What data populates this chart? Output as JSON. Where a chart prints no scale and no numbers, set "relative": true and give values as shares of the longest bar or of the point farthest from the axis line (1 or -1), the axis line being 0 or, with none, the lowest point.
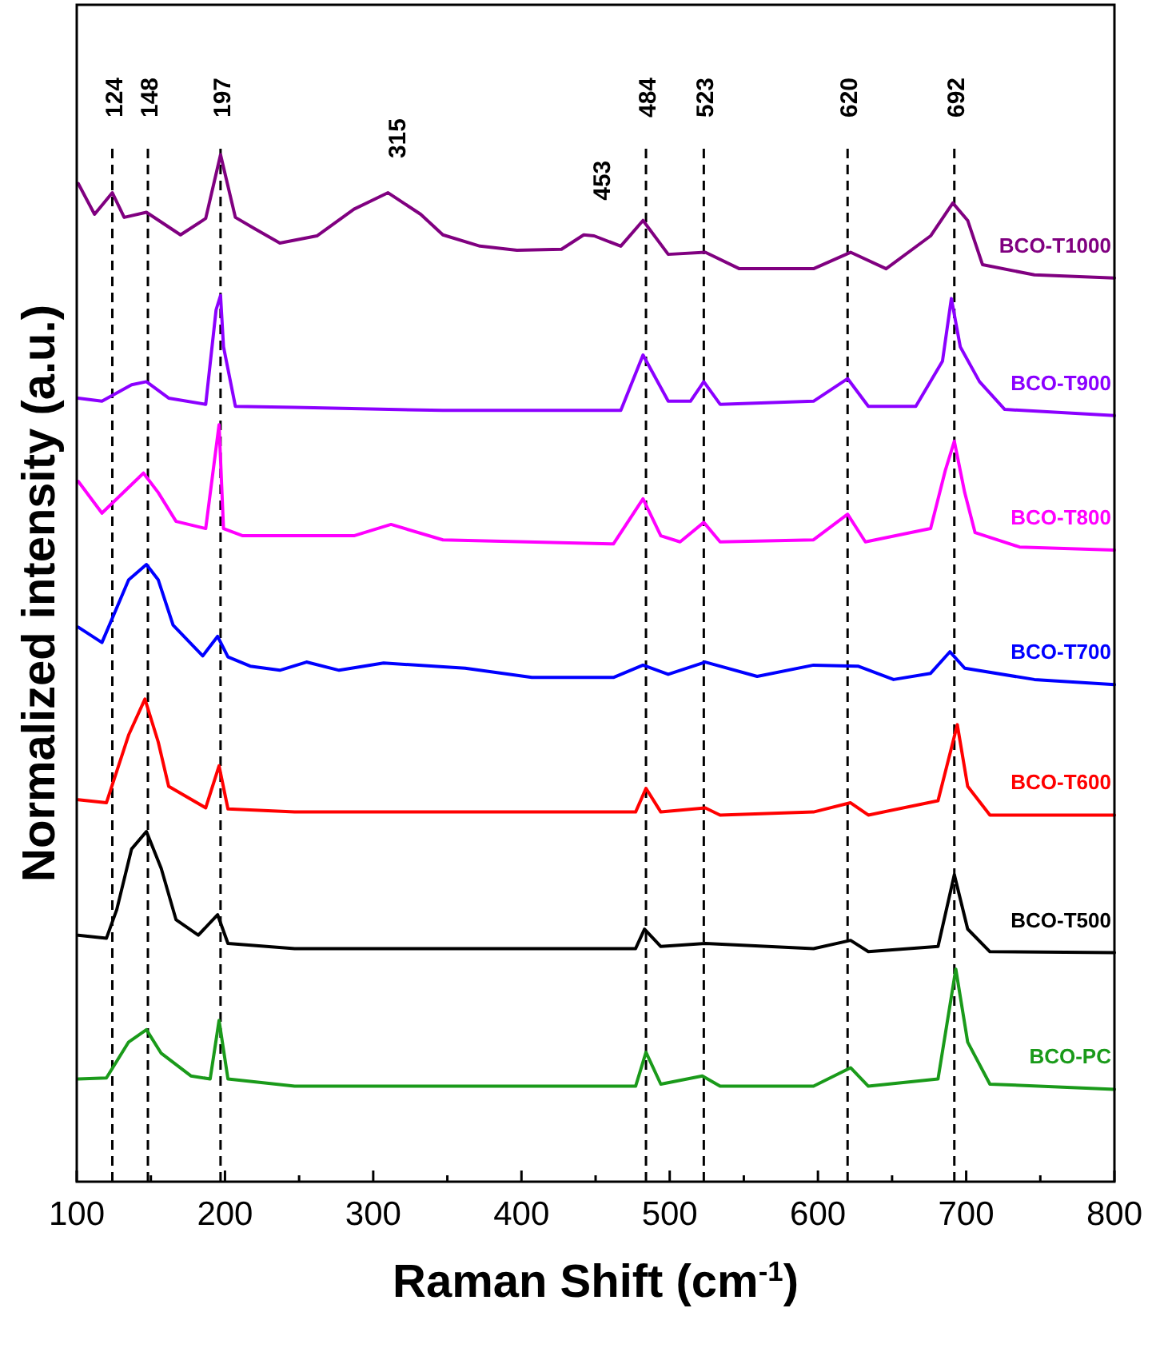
{
  "chart_data": {
    "type": "line",
    "relative": true,
    "xlabel": "Raman Shift (cm$^{-1}$)",
    "ylabel": "Normalized intensity (a.u.)",
    "xlim": [
      100,
      800
    ],
    "xticks": [
      100,
      {
        "value": 150,
        "label": null
      },
      200,
      {
        "value": 250,
        "label": null
      },
      300,
      {
        "value": 350,
        "label": null
      },
      400,
      {
        "value": 450,
        "label": null
      },
      500,
      {
        "value": 550,
        "label": null
      },
      600,
      {
        "value": 650,
        "label": null
      },
      700,
      {
        "value": 750,
        "label": null
      },
      800
    ],
    "legend": false,
    "grid": false,
    "tick_labels": "x",
    "ref_lines": [
      {
        "axis": "x",
        "value": 124,
        "label": "124",
        "line_style": "dashed"
      },
      {
        "axis": "x",
        "value": 148,
        "label": "148",
        "line_style": "dashed"
      },
      {
        "axis": "x",
        "value": 197,
        "label": "197",
        "line_style": "dashed"
      },
      {
        "axis": "x",
        "value": 484,
        "label": "484",
        "line_style": "dashed"
      },
      {
        "axis": "x",
        "value": 523,
        "label": "523",
        "line_style": "dashed"
      },
      {
        "axis": "x",
        "value": 620,
        "label": "620",
        "line_style": "dashed"
      },
      {
        "axis": "x",
        "value": 692,
        "label": "692",
        "line_style": "dashed"
      }
    ],
    "annotations": [
      {
        "text": "315",
        "x": 315,
        "y": 0.963
      },
      {
        "text": "453",
        "x": 453,
        "y": 0.922
      }
    ],
    "series": [
      {
        "name": "BCO-T1000",
        "color": "#800080",
        "x": [
          101,
          112,
          124,
          132,
          147,
          170,
          187,
          197,
          207,
          220,
          237,
          262,
          287,
          310,
          332,
          347,
          372,
          397,
          427,
          442,
          449,
          467,
          482,
          499,
          524,
          547,
          597,
          622,
          646,
          676,
          691,
          701,
          711,
          746,
          800
        ],
        "values": [
          0.972,
          0.942,
          0.963,
          0.939,
          0.944,
          0.922,
          0.938,
          1.0,
          0.939,
          0.928,
          0.914,
          0.921,
          0.947,
          0.963,
          0.942,
          0.922,
          0.911,
          0.907,
          0.908,
          0.922,
          0.921,
          0.911,
          0.936,
          0.903,
          0.905,
          0.889,
          0.889,
          0.905,
          0.889,
          0.921,
          0.953,
          0.936,
          0.893,
          0.883,
          0.88
        ]
      },
      {
        "name": "BCO-T900",
        "color": "#8b00ff",
        "x": [
          101,
          117,
          137,
          147,
          162,
          187,
          194,
          197,
          199,
          207,
          247,
          347,
          467,
          482,
          499,
          514,
          523,
          534,
          597,
          620,
          634,
          666,
          684,
          690,
          696,
          709,
          726,
          800
        ],
        "values": [
          0.763,
          0.76,
          0.776,
          0.779,
          0.763,
          0.757,
          0.849,
          0.863,
          0.813,
          0.755,
          0.754,
          0.751,
          0.751,
          0.805,
          0.76,
          0.76,
          0.779,
          0.757,
          0.76,
          0.782,
          0.755,
          0.755,
          0.799,
          0.86,
          0.813,
          0.779,
          0.752,
          0.746
        ]
      },
      {
        "name": "BCO-T800",
        "color": "#ff00ff",
        "x": [
          101,
          117,
          145,
          155,
          167,
          187,
          196,
          199,
          212,
          287,
          312,
          347,
          462,
          482,
          494,
          507,
          523,
          534,
          597,
          620,
          632,
          676,
          686,
          692,
          699,
          706,
          736,
          800
        ],
        "values": [
          0.682,
          0.651,
          0.69,
          0.671,
          0.643,
          0.636,
          0.737,
          0.636,
          0.629,
          0.629,
          0.64,
          0.625,
          0.621,
          0.665,
          0.629,
          0.623,
          0.642,
          0.623,
          0.625,
          0.65,
          0.623,
          0.636,
          0.693,
          0.721,
          0.671,
          0.632,
          0.618,
          0.615
        ]
      },
      {
        "name": "BCO-T700",
        "color": "#0000ff",
        "x": [
          101,
          117,
          135,
          147,
          155,
          165,
          185,
          195,
          202,
          217,
          237,
          255,
          277,
          307,
          362,
          407,
          462,
          482,
          499,
          524,
          559,
          597,
          627,
          651,
          676,
          689,
          699,
          746,
          800
        ],
        "values": [
          0.54,
          0.525,
          0.586,
          0.601,
          0.586,
          0.542,
          0.512,
          0.531,
          0.511,
          0.502,
          0.498,
          0.506,
          0.498,
          0.505,
          0.5,
          0.491,
          0.491,
          0.503,
          0.494,
          0.506,
          0.492,
          0.503,
          0.502,
          0.489,
          0.495,
          0.516,
          0.5,
          0.489,
          0.484
        ]
      },
      {
        "name": "BCO-T600",
        "color": "#ff0000",
        "x": [
          101,
          120,
          135,
          146,
          155,
          162,
          187,
          196,
          202,
          247,
          477,
          484,
          494,
          524,
          534,
          597,
          622,
          634,
          681,
          694,
          701,
          716,
          800
        ],
        "values": [
          0.372,
          0.369,
          0.435,
          0.47,
          0.428,
          0.385,
          0.364,
          0.405,
          0.363,
          0.36,
          0.36,
          0.383,
          0.36,
          0.364,
          0.357,
          0.36,
          0.369,
          0.357,
          0.371,
          0.445,
          0.385,
          0.357,
          0.357
        ]
      },
      {
        "name": "BCO-T500",
        "color": "#000000",
        "x": [
          101,
          120,
          127,
          137,
          147,
          157,
          167,
          182,
          195,
          202,
          247,
          477,
          483,
          494,
          524,
          597,
          622,
          634,
          681,
          692,
          701,
          716,
          800
        ],
        "values": [
          0.24,
          0.237,
          0.265,
          0.324,
          0.341,
          0.305,
          0.255,
          0.24,
          0.26,
          0.232,
          0.227,
          0.227,
          0.246,
          0.229,
          0.232,
          0.227,
          0.235,
          0.224,
          0.229,
          0.299,
          0.246,
          0.224,
          0.223
        ]
      },
      {
        "name": "BCO-PC",
        "color": "#1a9a1a",
        "x": [
          101,
          120,
          135,
          147,
          157,
          177,
          190,
          196,
          202,
          247,
          477,
          484,
          494,
          522,
          534,
          597,
          622,
          634,
          681,
          693,
          701,
          716,
          800
        ],
        "values": [
          0.1,
          0.101,
          0.136,
          0.148,
          0.125,
          0.103,
          0.1,
          0.157,
          0.1,
          0.093,
          0.093,
          0.126,
          0.095,
          0.103,
          0.093,
          0.093,
          0.111,
          0.093,
          0.1,
          0.207,
          0.136,
          0.095,
          0.09
        ]
      }
    ]
  }
}
